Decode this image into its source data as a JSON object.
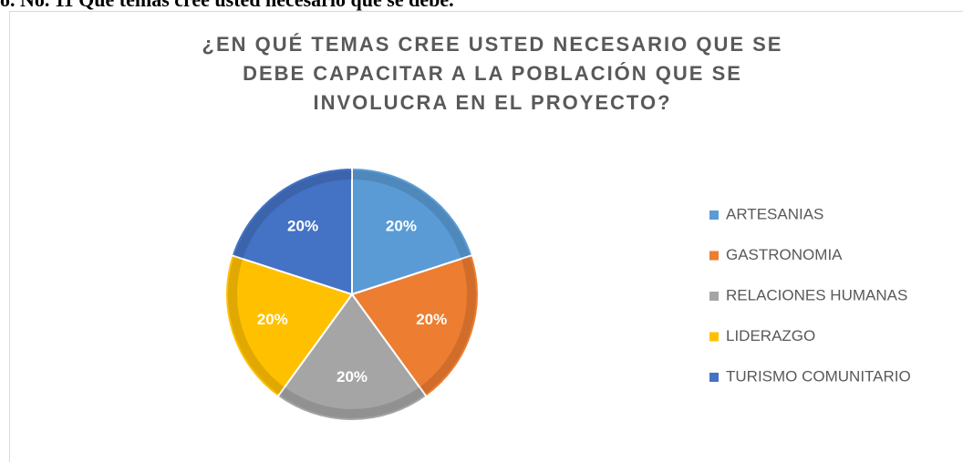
{
  "caption": "o. No. 11 Qué temas cree usted necesario que se debe.",
  "chart_data": {
    "type": "pie",
    "title": [
      "¿EN QUÉ TEMAS CREE USTED NECESARIO QUE SE",
      "DEBE CAPACITAR A LA POBLACIÓN QUE SE",
      "INVOLUCRA EN EL PROYECTO?"
    ],
    "categories": [
      "ARTESANIAS",
      "GASTRONOMIA",
      "RELACIONES HUMANAS",
      "LIDERAZGO",
      "TURISMO COMUNITARIO"
    ],
    "values": [
      20,
      20,
      20,
      20,
      20
    ],
    "value_labels": [
      "20%",
      "20%",
      "20%",
      "20%",
      "20%"
    ],
    "colors": [
      "#5b9bd5",
      "#ed7d31",
      "#a5a5a5",
      "#ffc000",
      "#4472c4"
    ],
    "legend": "right"
  }
}
